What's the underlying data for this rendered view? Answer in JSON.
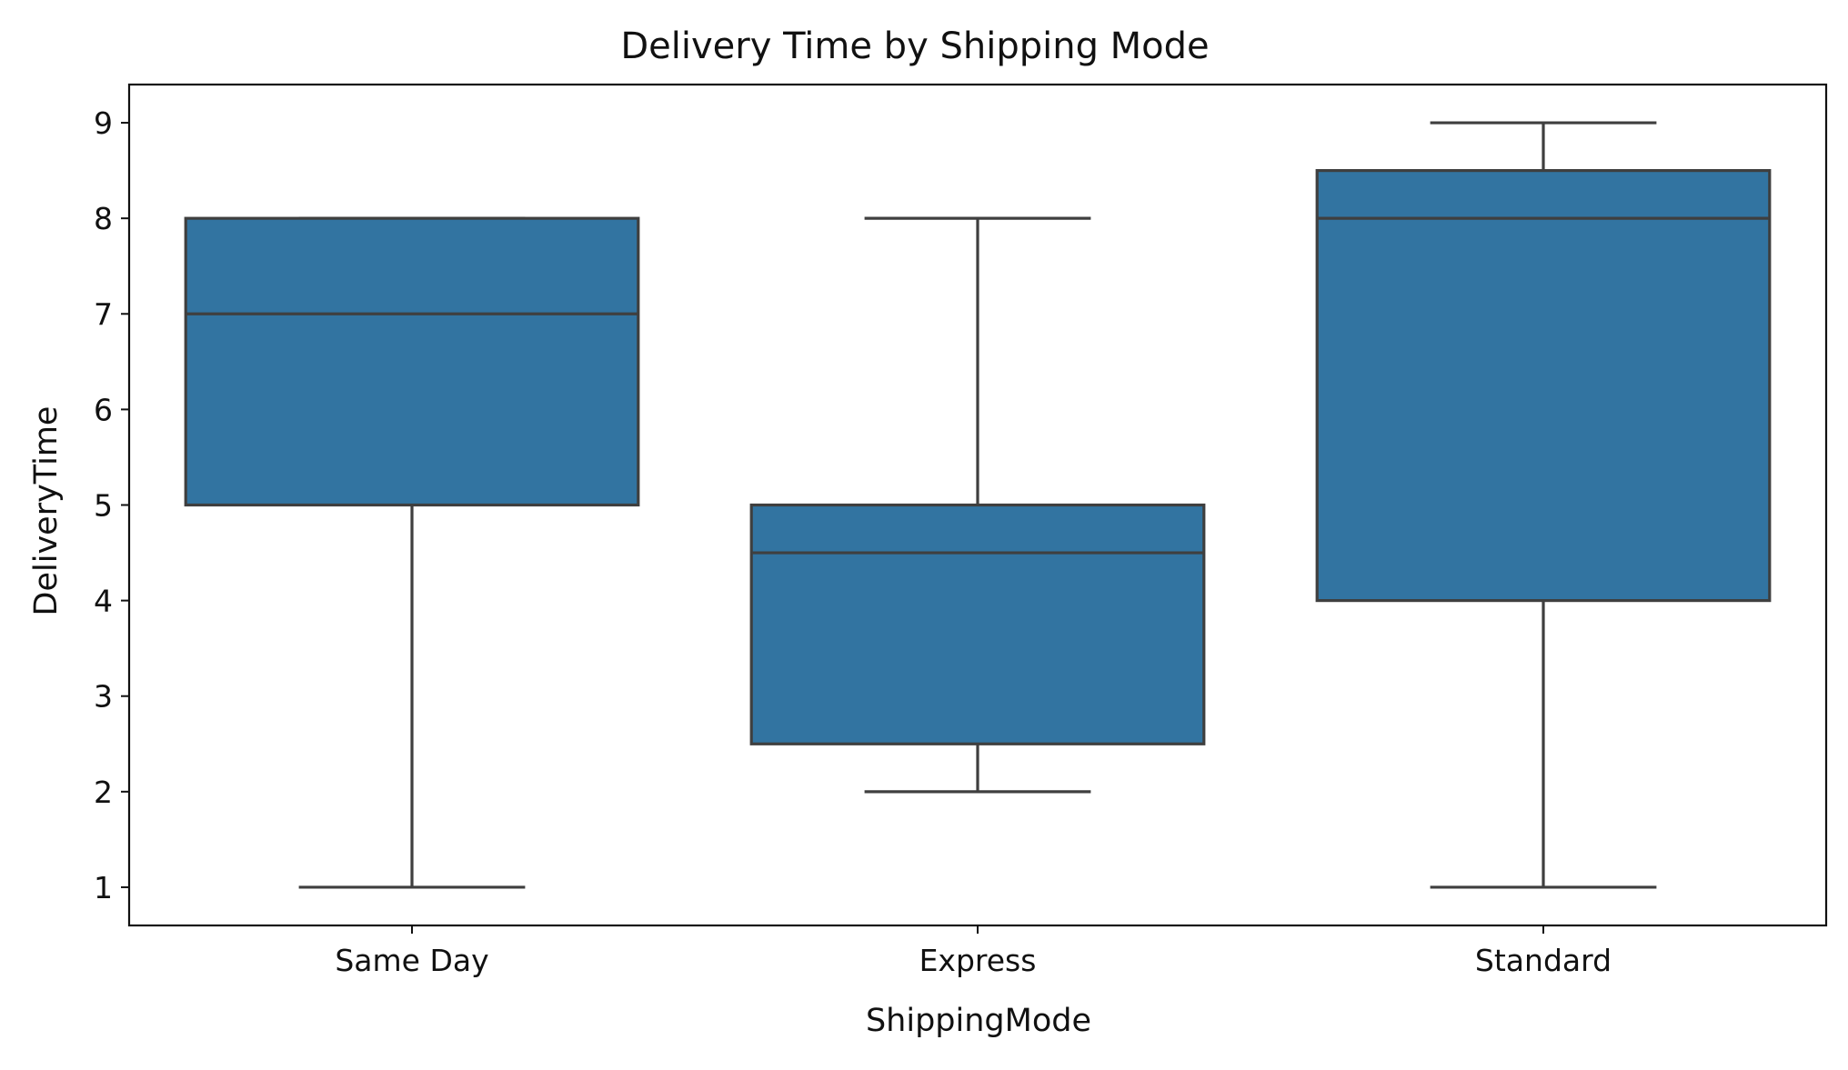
{
  "chart_data": {
    "type": "box",
    "title": "Delivery Time by Shipping Mode",
    "xlabel": "ShippingMode",
    "ylabel": "DeliveryTime",
    "categories": [
      "Same Day",
      "Express",
      "Standard"
    ],
    "boxes": [
      {
        "category": "Same Day",
        "whisker_low": 1,
        "q1": 5,
        "median": 7,
        "q3": 8,
        "whisker_high": 8
      },
      {
        "category": "Express",
        "whisker_low": 2,
        "q1": 2.5,
        "median": 4.5,
        "q3": 5,
        "whisker_high": 8
      },
      {
        "category": "Standard",
        "whisker_low": 1,
        "q1": 4,
        "median": 8,
        "q3": 8.5,
        "whisker_high": 9
      }
    ],
    "y_ticks": [
      "1",
      "2",
      "3",
      "4",
      "5",
      "6",
      "7",
      "8",
      "9"
    ],
    "ylim": [
      0.6,
      9.4
    ],
    "grid": false,
    "box_color": "#3274a1",
    "line_color": "#3f3f3f"
  }
}
